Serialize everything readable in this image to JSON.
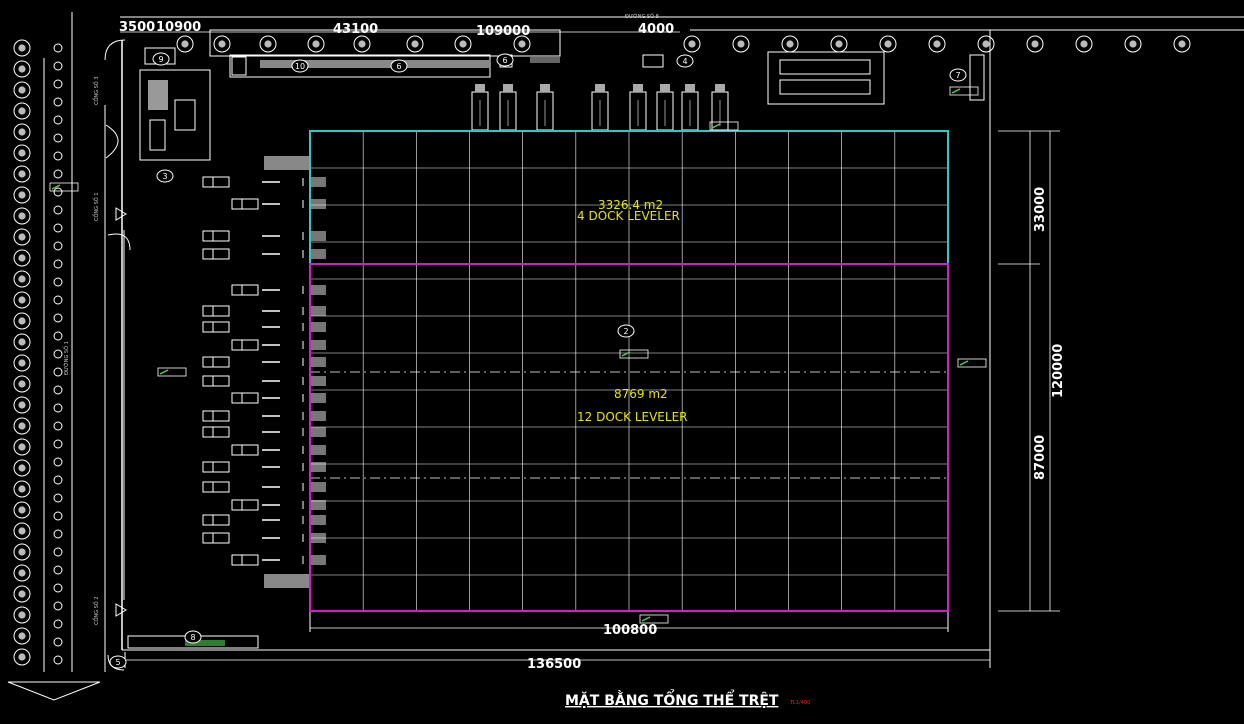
{
  "top_dimensions": {
    "d1": "3500",
    "d2": "10900",
    "d3": "43100",
    "d4": "109000",
    "d5": "4000"
  },
  "road_label_top": "ĐƯỜNG SỐ 8",
  "upper_zone": {
    "area": "3326.4 m2",
    "docks": "4 DOCK LEVELER",
    "color": "#2ec8c8"
  },
  "lower_zone": {
    "area": "8769 m2",
    "docks": "12 DOCK LEVELER",
    "color": "#d21ec8"
  },
  "right_dimensions": {
    "upper": "33000",
    "total": "120000",
    "lower": "87000"
  },
  "bottom_dimensions": {
    "building_width": "100800",
    "site_width": "136500"
  },
  "bubble_labels": [
    "9",
    "10",
    "6",
    "6",
    "4",
    "7",
    "3",
    "2",
    "5",
    "8"
  ],
  "title": {
    "main": "MẶT BẰNG TỔNG THỂ TRỆT",
    "scale": "TL1/400"
  },
  "colors": {
    "background": "#000000",
    "lines": "#ffffff",
    "text_yellow": "#e6e600",
    "scale_red": "#ff2020",
    "level_green": "#4fd14f"
  }
}
